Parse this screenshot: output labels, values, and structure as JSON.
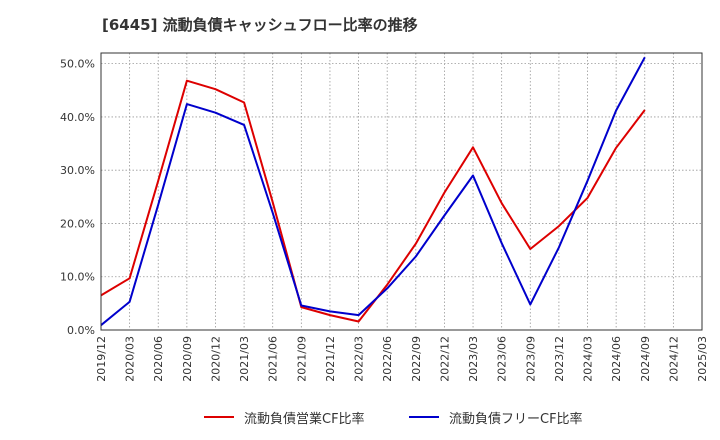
{
  "chart_data": {
    "type": "line",
    "title": "[6445]  流動負債キャッシュフロー比率の推移",
    "xlabel": "",
    "ylabel": "",
    "categories": [
      "2019/12",
      "2020/03",
      "2020/06",
      "2020/09",
      "2020/12",
      "2021/03",
      "2021/06",
      "2021/09",
      "2021/12",
      "2022/03",
      "2022/06",
      "2022/09",
      "2022/12",
      "2023/03",
      "2023/06",
      "2023/09",
      "2023/12",
      "2024/03",
      "2024/06",
      "2024/09",
      "2024/12",
      "2025/03"
    ],
    "ylim": [
      0,
      52
    ],
    "yticks": [
      0,
      10,
      20,
      30,
      40,
      50
    ],
    "ytick_labels": [
      "0.0%",
      "10.0%",
      "20.0%",
      "30.0%",
      "40.0%",
      "50.0%"
    ],
    "grid": true,
    "legend_position": "bottom",
    "series": [
      {
        "name": "流動負債営業CF比率",
        "color": "#dd0000",
        "values": [
          6.5,
          9.7,
          28.0,
          46.8,
          45.2,
          42.7,
          24.0,
          4.3,
          2.8,
          1.6,
          8.5,
          16.2,
          25.8,
          34.3,
          23.8,
          15.2,
          19.5,
          24.8,
          34.2,
          41.3,
          null,
          null
        ]
      },
      {
        "name": "流動負債フリーCF比率",
        "color": "#0000cc",
        "values": [
          0.9,
          5.3,
          23.5,
          42.4,
          40.8,
          38.5,
          22.0,
          4.6,
          3.5,
          2.8,
          7.8,
          13.8,
          21.5,
          29.0,
          16.3,
          4.8,
          15.5,
          28.0,
          41.2,
          51.2,
          null,
          null
        ]
      }
    ]
  }
}
